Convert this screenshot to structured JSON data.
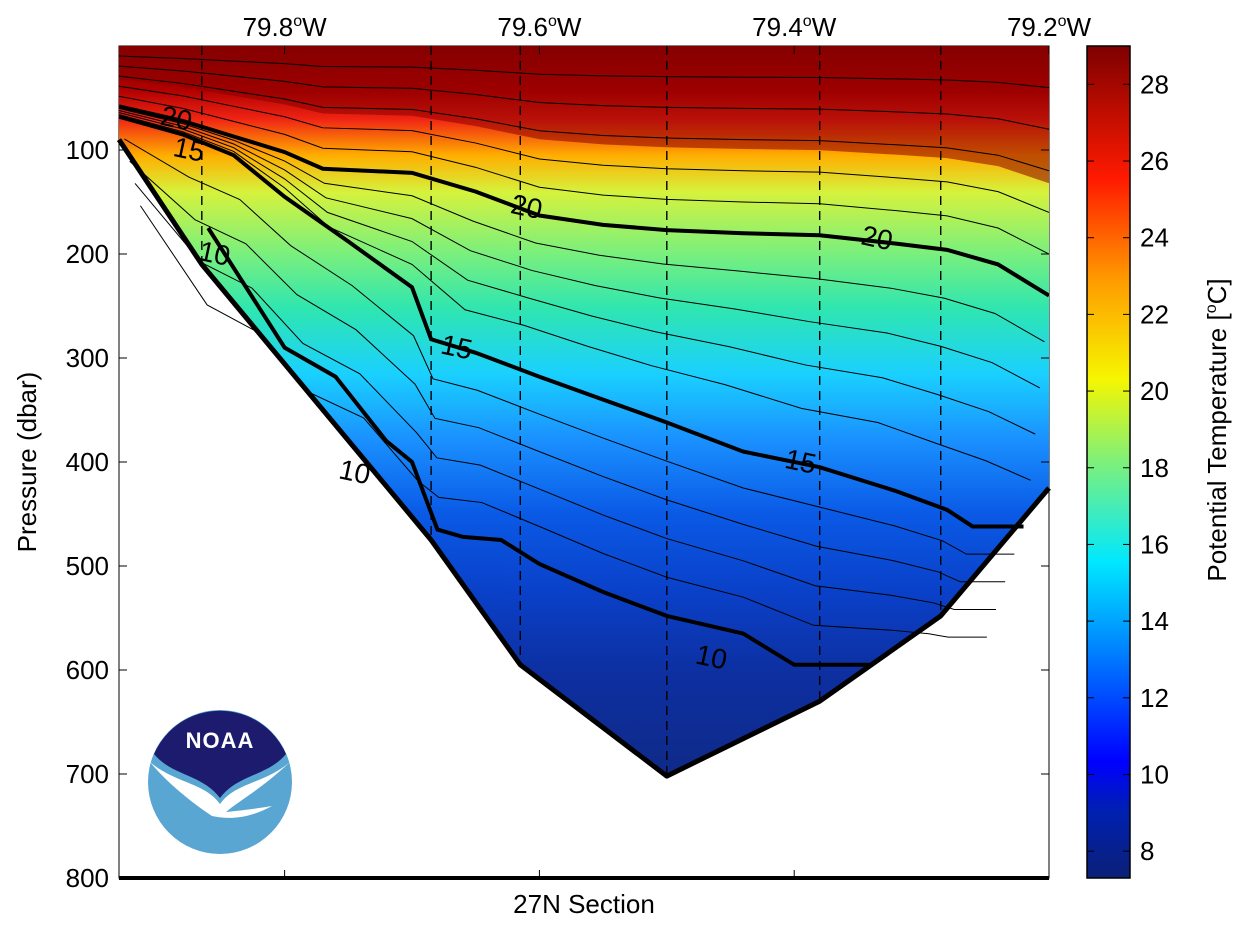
{
  "chart_data": {
    "type": "heatmap",
    "title": "",
    "xlabel": "27N Section",
    "ylabel": "Pressure (dbar)",
    "ylim": [
      800,
      0
    ],
    "xlim": [
      79.93,
      79.2
    ],
    "y_ticks": [
      100,
      200,
      300,
      400,
      500,
      600,
      700,
      800
    ],
    "y_tick_labels": [
      "100",
      "200",
      "300",
      "400",
      "500",
      "600",
      "700",
      "800"
    ],
    "x_ticks_top": [
      {
        "lon": 79.8,
        "label": "79.8",
        "suffix": "W"
      },
      {
        "lon": 79.6,
        "label": "79.6",
        "suffix": "W"
      },
      {
        "lon": 79.4,
        "label": "79.4",
        "suffix": "W"
      },
      {
        "lon": 79.2,
        "label": "79.2",
        "suffix": "W"
      }
    ],
    "degree_mark": "o",
    "stations_lon": [
      79.865,
      79.685,
      79.615,
      79.5,
      79.38,
      79.285
    ],
    "bottom_profile": [
      {
        "lon": 79.93,
        "p": 90
      },
      {
        "lon": 79.865,
        "p": 210
      },
      {
        "lon": 79.685,
        "p": 475
      },
      {
        "lon": 79.615,
        "p": 595
      },
      {
        "lon": 79.5,
        "p": 702
      },
      {
        "lon": 79.38,
        "p": 630
      },
      {
        "lon": 79.285,
        "p": 548
      },
      {
        "lon": 79.2,
        "p": 425
      }
    ],
    "isotherms": [
      {
        "temp": 20,
        "points": [
          [
            79.93,
            58
          ],
          [
            79.88,
            72
          ],
          [
            79.84,
            87
          ],
          [
            79.8,
            102
          ],
          [
            79.77,
            118
          ],
          [
            79.7,
            122
          ],
          [
            79.65,
            140
          ],
          [
            79.6,
            163
          ],
          [
            79.55,
            172
          ],
          [
            79.5,
            177
          ],
          [
            79.44,
            180
          ],
          [
            79.38,
            182
          ],
          [
            79.32,
            190
          ],
          [
            79.28,
            196
          ],
          [
            79.24,
            210
          ],
          [
            79.2,
            240
          ]
        ]
      },
      {
        "temp": 15,
        "points": [
          [
            79.93,
            68
          ],
          [
            79.88,
            85
          ],
          [
            79.84,
            105
          ],
          [
            79.8,
            145
          ],
          [
            79.75,
            188
          ],
          [
            79.7,
            232
          ],
          [
            79.685,
            282
          ],
          [
            79.65,
            295
          ],
          [
            79.6,
            318
          ],
          [
            79.55,
            340
          ],
          [
            79.5,
            362
          ],
          [
            79.44,
            390
          ],
          [
            79.38,
            405
          ],
          [
            79.32,
            428
          ],
          [
            79.28,
            446
          ],
          [
            79.26,
            462
          ],
          [
            79.22,
            462
          ]
        ]
      },
      {
        "temp": 10,
        "points": [
          [
            79.86,
            175
          ],
          [
            79.8,
            290
          ],
          [
            79.76,
            318
          ],
          [
            79.72,
            380
          ],
          [
            79.7,
            400
          ],
          [
            79.68,
            465
          ],
          [
            79.66,
            472
          ],
          [
            79.63,
            475
          ],
          [
            79.6,
            498
          ],
          [
            79.55,
            525
          ],
          [
            79.5,
            548
          ],
          [
            79.44,
            565
          ],
          [
            79.4,
            595
          ],
          [
            79.34,
            595
          ]
        ]
      }
    ],
    "contour_labels": [
      {
        "text": "20",
        "lon": 79.885,
        "p": 70
      },
      {
        "text": "15",
        "lon": 79.875,
        "p": 100
      },
      {
        "text": "10",
        "lon": 79.855,
        "p": 200
      },
      {
        "text": "20",
        "lon": 79.61,
        "p": 155
      },
      {
        "text": "20",
        "lon": 79.335,
        "p": 185
      },
      {
        "text": "15",
        "lon": 79.665,
        "p": 290
      },
      {
        "text": "15",
        "lon": 79.395,
        "p": 400
      },
      {
        "text": "10",
        "lon": 79.745,
        "p": 410
      },
      {
        "text": "10",
        "lon": 79.465,
        "p": 588
      }
    ],
    "colorbar": {
      "label": "Potential Temperature [",
      "label_sup": "o",
      "label_end": "C]",
      "min": 7.3,
      "max": 29.0,
      "ticks": [
        8,
        10,
        12,
        14,
        16,
        18,
        20,
        22,
        24,
        26,
        28
      ],
      "tick_labels": [
        "8",
        "10",
        "12",
        "14",
        "16",
        "18",
        "20",
        "22",
        "24",
        "26",
        "28"
      ]
    }
  },
  "logo": {
    "text": "NOAA"
  },
  "colors": {
    "deep": "#0f2c8e",
    "cold": "#0a50e0",
    "cool": "#1aa0ff",
    "mid": "#22dcd0",
    "mild": "#7ef07a",
    "warm_mild": "#e6f23a",
    "warm": "#ffb800",
    "hot": "#f01a1a",
    "hottest": "#8c0000",
    "noaa_navy": "#1d1b6e",
    "noaa_sky": "#5aa6d2"
  }
}
